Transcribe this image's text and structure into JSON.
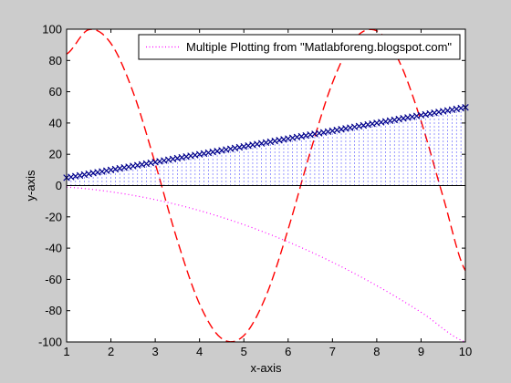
{
  "chart_data": {
    "type": "line",
    "xlabel": "x-axis",
    "ylabel": "y-axis",
    "xlim": [
      1,
      10
    ],
    "ylim": [
      -100,
      100
    ],
    "x_ticks": [
      "1",
      "2",
      "3",
      "4",
      "5",
      "6",
      "7",
      "8",
      "9",
      "10"
    ],
    "y_ticks": [
      "100",
      "80",
      "60",
      "40",
      "20",
      "0",
      "-20",
      "-40",
      "-60",
      "-80",
      "-100"
    ],
    "grid": false,
    "legend_position": "top-right",
    "legend_entries": [
      "Multiple Plotting from \"Matlabforeng.blogspot.com\""
    ],
    "series": [
      {
        "style": "dotted",
        "color": "#ff00ff",
        "x": [
          1,
          2,
          3,
          4,
          5,
          6,
          7,
          8,
          9,
          10
        ],
        "values": [
          -1,
          -4,
          -9,
          -16,
          -25,
          -36,
          -49,
          -64,
          -81,
          -100
        ]
      },
      {
        "style": "dashed",
        "color": "#ff0000",
        "x": [
          1,
          1.5,
          2,
          2.5,
          3,
          3.5,
          4,
          4.5,
          5,
          5.5,
          6,
          6.5,
          7,
          7.5,
          8,
          8.5,
          9,
          9.5,
          10
        ],
        "values": [
          84.1,
          99.7,
          90.9,
          59.8,
          14.1,
          -35.1,
          -75.7,
          -97.8,
          -95.9,
          -70.6,
          -27.9,
          21.5,
          65.7,
          93.8,
          98.9,
          79.8,
          41.2,
          -7.5,
          -54.4
        ]
      },
      {
        "style": "stem",
        "color": "#0000ff",
        "x": [
          1,
          2,
          3,
          4,
          5,
          6,
          7,
          8,
          9,
          10
        ],
        "values": [
          5,
          10,
          15,
          20,
          25,
          30,
          35,
          40,
          45,
          50
        ]
      },
      {
        "style": "x-markers",
        "color": "#00008b",
        "x": [
          1,
          2,
          3,
          4,
          5,
          6,
          7,
          8,
          9,
          10
        ],
        "values": [
          5,
          10,
          15,
          20,
          25,
          30,
          35,
          40,
          45,
          50
        ]
      }
    ]
  }
}
